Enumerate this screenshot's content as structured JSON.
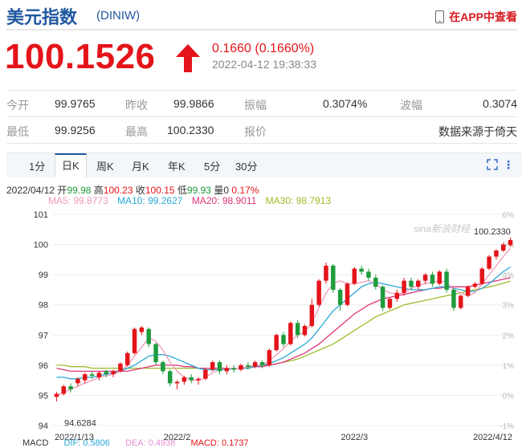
{
  "header": {
    "title": "美元指数",
    "code": "(DINIW)",
    "app_link": "在APP中查看"
  },
  "quote": {
    "price": "100.1526",
    "change": "0.1660 (0.1660%)",
    "datetime": "2022-04-12 19:38:33"
  },
  "stats": {
    "open_label": "今开",
    "open": "99.9765",
    "prev_close_label": "昨收",
    "prev_close": "99.9866",
    "amplitude_label": "振幅",
    "amplitude": "0.3074%",
    "range_label": "波幅",
    "range": "0.3074",
    "low_label": "最低",
    "low": "99.9256",
    "high_label": "最高",
    "high": "100.2330",
    "quote_label": "报价",
    "source": "数据来源于倚天"
  },
  "tabs": [
    "1分",
    "日K",
    "周K",
    "月K",
    "年K",
    "5分",
    "30分"
  ],
  "active_tab": "日K",
  "ohlc_line": {
    "date": "2022/04/12",
    "open_label": "开",
    "open": "99.98",
    "high_label": "高",
    "high": "100.23",
    "close_label": "收",
    "close": "100.15",
    "low_label": "低",
    "low": "99.93",
    "vol_label": "量",
    "vol": "0",
    "pct": "0.17%"
  },
  "ma_legend": {
    "ma5": "MA5: 99.8773",
    "ma10": "MA10: 99.2627",
    "ma20": "MA20: 98.9011",
    "ma30": "MA30: 98.7913"
  },
  "macd_legend": {
    "label": "MACD",
    "dif": "DIF: 0.5806",
    "dea": "DEA: 0.4938",
    "macd": "MACD: 0.1737"
  },
  "colors": {
    "up": "#e4141b",
    "down": "#1e9c3c",
    "ma5": "#f09ab8",
    "ma10": "#2aa8d8",
    "ma20": "#e0357a",
    "ma30": "#9cbd2a",
    "brand": "#1f58a0"
  },
  "chart_data": {
    "type": "candlestick",
    "ylim": [
      94,
      101
    ],
    "y_ticks": [
      "101",
      "100",
      "99",
      "98",
      "97",
      "96",
      "95",
      "94"
    ],
    "pct_ticks": [
      "6%",
      "5%",
      "4%",
      "3%",
      "2%",
      "1%",
      "0%",
      "-1%"
    ],
    "x_ticks": [
      "2022/1/13",
      "2022/2",
      "2022/3",
      "2022/4/12"
    ],
    "max_label": "100.2330",
    "min_label": "94.6284",
    "watermark": "sina新浪财经",
    "candles": [
      [
        94.95,
        95.05,
        94.8,
        95.12
      ],
      [
        95.05,
        95.3,
        95.0,
        95.35
      ],
      [
        95.3,
        95.2,
        95.1,
        95.4
      ],
      [
        95.4,
        95.55,
        95.3,
        95.6
      ],
      [
        95.5,
        95.7,
        95.4,
        95.75
      ],
      [
        95.7,
        95.65,
        95.55,
        95.8
      ],
      [
        95.6,
        95.75,
        95.5,
        95.8
      ],
      [
        95.8,
        95.7,
        95.6,
        95.85
      ],
      [
        95.7,
        95.8,
        95.6,
        95.85
      ],
      [
        95.8,
        96.05,
        95.75,
        96.1
      ],
      [
        96.0,
        96.4,
        95.95,
        96.45
      ],
      [
        96.4,
        97.2,
        96.35,
        97.25
      ],
      [
        97.1,
        97.25,
        97.0,
        97.3
      ],
      [
        97.2,
        96.7,
        96.6,
        97.25
      ],
      [
        96.7,
        96.1,
        96.0,
        96.75
      ],
      [
        96.1,
        95.8,
        95.7,
        96.15
      ],
      [
        95.8,
        95.4,
        95.3,
        95.85
      ],
      [
        95.4,
        95.45,
        95.2,
        95.5
      ],
      [
        95.45,
        95.6,
        95.35,
        95.65
      ],
      [
        95.6,
        95.5,
        95.4,
        95.7
      ],
      [
        95.5,
        95.55,
        95.35,
        95.6
      ],
      [
        95.55,
        95.85,
        95.5,
        95.9
      ],
      [
        95.85,
        96.1,
        95.8,
        96.15
      ],
      [
        96.1,
        95.8,
        95.7,
        96.15
      ],
      [
        95.8,
        95.9,
        95.7,
        96.0
      ],
      [
        95.9,
        95.85,
        95.75,
        96.0
      ],
      [
        95.85,
        96.0,
        95.8,
        96.05
      ],
      [
        96.0,
        95.95,
        95.85,
        96.1
      ],
      [
        95.95,
        96.1,
        95.9,
        96.15
      ],
      [
        96.1,
        96.0,
        95.9,
        96.15
      ],
      [
        96.0,
        96.5,
        95.95,
        96.55
      ],
      [
        96.5,
        97.0,
        96.45,
        97.05
      ],
      [
        97.0,
        96.7,
        96.6,
        97.1
      ],
      [
        96.7,
        97.4,
        96.65,
        97.45
      ],
      [
        97.4,
        97.0,
        96.9,
        97.5
      ],
      [
        97.0,
        97.3,
        96.95,
        97.35
      ],
      [
        97.3,
        98.0,
        97.25,
        98.2
      ],
      [
        98.0,
        98.8,
        97.95,
        98.85
      ],
      [
        98.8,
        99.3,
        98.7,
        99.4
      ],
      [
        99.3,
        98.5,
        98.4,
        99.35
      ],
      [
        98.5,
        98.0,
        97.8,
        98.55
      ],
      [
        98.0,
        98.7,
        97.95,
        98.75
      ],
      [
        98.7,
        99.2,
        98.65,
        99.25
      ],
      [
        99.2,
        99.1,
        99.0,
        99.3
      ],
      [
        99.1,
        98.9,
        98.8,
        99.2
      ],
      [
        98.9,
        98.6,
        98.5,
        99.0
      ],
      [
        98.6,
        97.9,
        97.8,
        98.65
      ],
      [
        97.9,
        98.2,
        97.85,
        98.25
      ],
      [
        98.2,
        98.4,
        98.1,
        98.5
      ],
      [
        98.4,
        98.8,
        98.3,
        98.9
      ],
      [
        98.8,
        98.6,
        98.5,
        98.9
      ],
      [
        98.6,
        98.8,
        98.5,
        98.85
      ],
      [
        98.8,
        99.0,
        98.7,
        99.05
      ],
      [
        99.0,
        98.7,
        98.6,
        99.1
      ],
      [
        98.7,
        99.1,
        98.65,
        99.15
      ],
      [
        99.1,
        98.5,
        98.4,
        99.2
      ],
      [
        98.5,
        97.9,
        97.8,
        98.55
      ],
      [
        97.9,
        98.3,
        97.85,
        98.35
      ],
      [
        98.3,
        98.6,
        98.25,
        98.65
      ],
      [
        98.6,
        98.7,
        98.55,
        98.75
      ],
      [
        98.7,
        99.2,
        98.65,
        99.25
      ],
      [
        99.2,
        99.6,
        99.15,
        99.65
      ],
      [
        99.6,
        99.8,
        99.5,
        99.85
      ],
      [
        99.8,
        100.0,
        99.75,
        100.05
      ],
      [
        99.98,
        100.15,
        99.93,
        100.23
      ]
    ],
    "ma5": [
      95.0,
      95.1,
      95.2,
      95.3,
      95.4,
      95.5,
      95.6,
      95.65,
      95.7,
      95.8,
      96.0,
      96.3,
      96.6,
      96.9,
      96.8,
      96.5,
      96.1,
      95.8,
      95.6,
      95.5,
      95.5,
      95.6,
      95.75,
      95.85,
      95.9,
      95.9,
      95.9,
      95.95,
      96.0,
      96.0,
      96.15,
      96.35,
      96.55,
      96.8,
      97.0,
      97.1,
      97.4,
      97.9,
      98.4,
      98.7,
      98.8,
      98.7,
      98.7,
      98.75,
      98.8,
      98.7,
      98.5,
      98.4,
      98.35,
      98.4,
      98.55,
      98.65,
      98.7,
      98.75,
      98.8,
      98.75,
      98.5,
      98.4,
      98.3,
      98.4,
      98.7,
      99.0,
      99.3,
      99.6,
      99.88
    ],
    "ma10": [
      95.6,
      95.6,
      95.55,
      95.55,
      95.6,
      95.6,
      95.65,
      95.7,
      95.75,
      95.8,
      95.9,
      96.0,
      96.15,
      96.3,
      96.35,
      96.35,
      96.3,
      96.2,
      96.1,
      96.0,
      95.9,
      95.85,
      95.85,
      95.85,
      95.85,
      95.9,
      95.9,
      95.9,
      95.95,
      96.0,
      96.05,
      96.15,
      96.25,
      96.4,
      96.55,
      96.7,
      96.9,
      97.2,
      97.5,
      97.8,
      98.0,
      98.2,
      98.4,
      98.6,
      98.7,
      98.75,
      98.7,
      98.65,
      98.6,
      98.55,
      98.5,
      98.5,
      98.5,
      98.55,
      98.6,
      98.6,
      98.55,
      98.5,
      98.45,
      98.45,
      98.55,
      98.7,
      98.9,
      99.1,
      99.26
    ],
    "ma20": [
      95.9,
      95.85,
      95.8,
      95.8,
      95.8,
      95.8,
      95.8,
      95.8,
      95.8,
      95.8,
      95.8,
      95.85,
      95.9,
      95.95,
      96.0,
      96.0,
      96.0,
      96.0,
      95.95,
      95.95,
      95.9,
      95.9,
      95.9,
      95.9,
      95.9,
      95.9,
      95.9,
      95.9,
      95.95,
      95.95,
      96.0,
      96.05,
      96.1,
      96.2,
      96.3,
      96.4,
      96.55,
      96.7,
      96.9,
      97.1,
      97.3,
      97.5,
      97.7,
      97.85,
      98.0,
      98.1,
      98.2,
      98.25,
      98.3,
      98.35,
      98.4,
      98.45,
      98.5,
      98.55,
      98.55,
      98.6,
      98.6,
      98.6,
      98.6,
      98.65,
      98.7,
      98.75,
      98.8,
      98.85,
      98.9
    ],
    "ma30": [
      96.0,
      96.0,
      95.95,
      95.95,
      95.95,
      95.9,
      95.9,
      95.9,
      95.9,
      95.9,
      95.9,
      95.9,
      95.9,
      95.9,
      95.9,
      95.9,
      95.9,
      95.9,
      95.9,
      95.9,
      95.9,
      95.9,
      95.9,
      95.9,
      95.9,
      95.9,
      95.9,
      95.95,
      95.95,
      96.0,
      96.0,
      96.05,
      96.1,
      96.15,
      96.2,
      96.3,
      96.4,
      96.5,
      96.6,
      96.7,
      96.85,
      97.0,
      97.15,
      97.3,
      97.45,
      97.6,
      97.7,
      97.8,
      97.9,
      98.0,
      98.05,
      98.1,
      98.15,
      98.2,
      98.25,
      98.3,
      98.35,
      98.4,
      98.45,
      98.5,
      98.55,
      98.6,
      98.65,
      98.72,
      98.79
    ]
  }
}
